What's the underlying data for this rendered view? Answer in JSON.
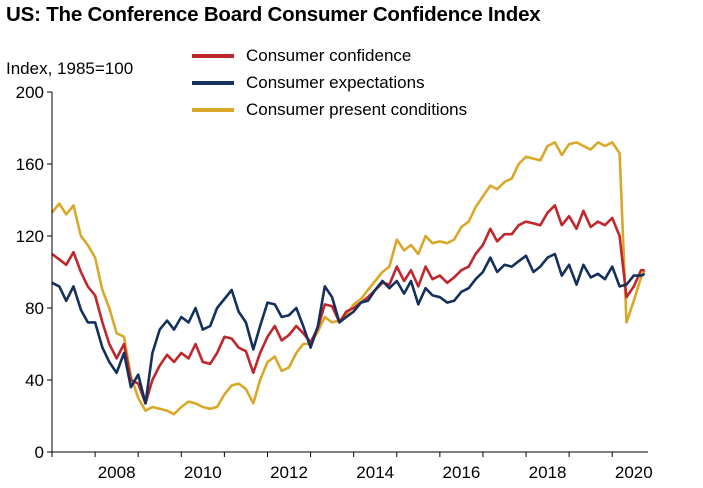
{
  "title": "US: The Conference Board Consumer Confidence Index",
  "colors": {
    "consumer_confidence": "#c0272d",
    "consumer_expectations": "#14305c",
    "consumer_present_conditions": "#d9a829"
  },
  "chart_data": {
    "type": "line",
    "title": "US: The Conference Board Consumer Confidence Index",
    "ylabel": "Index, 1985=100",
    "xlabel": "",
    "ylim": [
      0,
      200
    ],
    "xlim": [
      2007.0,
      2020.83
    ],
    "y_ticks": [
      0,
      40,
      80,
      120,
      160,
      200
    ],
    "x_ticks": [
      "2008",
      "2010",
      "2012",
      "2014",
      "2016",
      "2018",
      "2020"
    ],
    "grid": false,
    "legend_position": "top",
    "series": [
      {
        "name": "Consumer confidence",
        "color": "#c0272d",
        "points": [
          [
            2007.0,
            110
          ],
          [
            2007.17,
            107
          ],
          [
            2007.33,
            104
          ],
          [
            2007.5,
            111
          ],
          [
            2007.67,
            100
          ],
          [
            2007.83,
            92
          ],
          [
            2008.0,
            87
          ],
          [
            2008.17,
            72
          ],
          [
            2008.33,
            60
          ],
          [
            2008.5,
            52
          ],
          [
            2008.67,
            60
          ],
          [
            2008.83,
            40
          ],
          [
            2009.0,
            38
          ],
          [
            2009.17,
            27
          ],
          [
            2009.33,
            40
          ],
          [
            2009.5,
            48
          ],
          [
            2009.67,
            54
          ],
          [
            2009.83,
            50
          ],
          [
            2010.0,
            55
          ],
          [
            2010.17,
            52
          ],
          [
            2010.33,
            60
          ],
          [
            2010.5,
            50
          ],
          [
            2010.67,
            49
          ],
          [
            2010.83,
            55
          ],
          [
            2011.0,
            64
          ],
          [
            2011.17,
            63
          ],
          [
            2011.33,
            58
          ],
          [
            2011.5,
            56
          ],
          [
            2011.67,
            44
          ],
          [
            2011.83,
            55
          ],
          [
            2012.0,
            64
          ],
          [
            2012.17,
            70
          ],
          [
            2012.33,
            62
          ],
          [
            2012.5,
            65
          ],
          [
            2012.67,
            70
          ],
          [
            2012.83,
            66
          ],
          [
            2013.0,
            61
          ],
          [
            2013.17,
            69
          ],
          [
            2013.33,
            82
          ],
          [
            2013.5,
            81
          ],
          [
            2013.67,
            72
          ],
          [
            2013.83,
            78
          ],
          [
            2014.0,
            80
          ],
          [
            2014.17,
            83
          ],
          [
            2014.33,
            86
          ],
          [
            2014.5,
            90
          ],
          [
            2014.67,
            94
          ],
          [
            2014.83,
            93
          ],
          [
            2015.0,
            103
          ],
          [
            2015.17,
            95
          ],
          [
            2015.33,
            101
          ],
          [
            2015.5,
            92
          ],
          [
            2015.67,
            103
          ],
          [
            2015.83,
            96
          ],
          [
            2016.0,
            98
          ],
          [
            2016.17,
            94
          ],
          [
            2016.33,
            97
          ],
          [
            2016.5,
            101
          ],
          [
            2016.67,
            103
          ],
          [
            2016.83,
            110
          ],
          [
            2017.0,
            115
          ],
          [
            2017.17,
            124
          ],
          [
            2017.33,
            117
          ],
          [
            2017.5,
            121
          ],
          [
            2017.67,
            121
          ],
          [
            2017.83,
            126
          ],
          [
            2018.0,
            128
          ],
          [
            2018.17,
            127
          ],
          [
            2018.33,
            126
          ],
          [
            2018.5,
            133
          ],
          [
            2018.67,
            137
          ],
          [
            2018.83,
            126
          ],
          [
            2019.0,
            131
          ],
          [
            2019.17,
            124
          ],
          [
            2019.33,
            134
          ],
          [
            2019.5,
            125
          ],
          [
            2019.67,
            128
          ],
          [
            2019.83,
            126
          ],
          [
            2020.0,
            130
          ],
          [
            2020.17,
            120
          ],
          [
            2020.33,
            86
          ],
          [
            2020.5,
            92
          ],
          [
            2020.67,
            101
          ],
          [
            2020.75,
            101
          ]
        ]
      },
      {
        "name": "Consumer expectations",
        "color": "#14305c",
        "points": [
          [
            2007.0,
            94
          ],
          [
            2007.17,
            92
          ],
          [
            2007.33,
            84
          ],
          [
            2007.5,
            92
          ],
          [
            2007.67,
            79
          ],
          [
            2007.83,
            72
          ],
          [
            2008.0,
            72
          ],
          [
            2008.17,
            58
          ],
          [
            2008.33,
            50
          ],
          [
            2008.5,
            44
          ],
          [
            2008.67,
            55
          ],
          [
            2008.83,
            36
          ],
          [
            2009.0,
            43
          ],
          [
            2009.17,
            27
          ],
          [
            2009.33,
            55
          ],
          [
            2009.5,
            68
          ],
          [
            2009.67,
            73
          ],
          [
            2009.83,
            68
          ],
          [
            2010.0,
            75
          ],
          [
            2010.17,
            72
          ],
          [
            2010.33,
            80
          ],
          [
            2010.5,
            68
          ],
          [
            2010.67,
            70
          ],
          [
            2010.83,
            80
          ],
          [
            2011.0,
            85
          ],
          [
            2011.17,
            90
          ],
          [
            2011.33,
            78
          ],
          [
            2011.5,
            72
          ],
          [
            2011.67,
            57
          ],
          [
            2011.83,
            70
          ],
          [
            2012.0,
            83
          ],
          [
            2012.17,
            82
          ],
          [
            2012.33,
            75
          ],
          [
            2012.5,
            76
          ],
          [
            2012.67,
            80
          ],
          [
            2012.83,
            70
          ],
          [
            2013.0,
            58
          ],
          [
            2013.17,
            70
          ],
          [
            2013.33,
            92
          ],
          [
            2013.5,
            86
          ],
          [
            2013.67,
            72
          ],
          [
            2013.83,
            75
          ],
          [
            2014.0,
            78
          ],
          [
            2014.17,
            83
          ],
          [
            2014.33,
            84
          ],
          [
            2014.5,
            90
          ],
          [
            2014.67,
            95
          ],
          [
            2014.83,
            91
          ],
          [
            2015.0,
            95
          ],
          [
            2015.17,
            88
          ],
          [
            2015.33,
            95
          ],
          [
            2015.5,
            82
          ],
          [
            2015.67,
            91
          ],
          [
            2015.83,
            87
          ],
          [
            2016.0,
            86
          ],
          [
            2016.17,
            83
          ],
          [
            2016.33,
            84
          ],
          [
            2016.5,
            89
          ],
          [
            2016.67,
            91
          ],
          [
            2016.83,
            96
          ],
          [
            2017.0,
            100
          ],
          [
            2017.17,
            108
          ],
          [
            2017.33,
            100
          ],
          [
            2017.5,
            104
          ],
          [
            2017.67,
            103
          ],
          [
            2017.83,
            106
          ],
          [
            2018.0,
            109
          ],
          [
            2018.17,
            100
          ],
          [
            2018.33,
            103
          ],
          [
            2018.5,
            108
          ],
          [
            2018.67,
            110
          ],
          [
            2018.83,
            98
          ],
          [
            2019.0,
            104
          ],
          [
            2019.17,
            93
          ],
          [
            2019.33,
            104
          ],
          [
            2019.5,
            97
          ],
          [
            2019.67,
            99
          ],
          [
            2019.83,
            96
          ],
          [
            2020.0,
            103
          ],
          [
            2020.17,
            92
          ],
          [
            2020.33,
            93
          ],
          [
            2020.5,
            98
          ],
          [
            2020.67,
            98
          ],
          [
            2020.75,
            99
          ]
        ]
      },
      {
        "name": "Consumer present conditions",
        "color": "#d9a829",
        "points": [
          [
            2007.0,
            133
          ],
          [
            2007.17,
            138
          ],
          [
            2007.33,
            132
          ],
          [
            2007.5,
            137
          ],
          [
            2007.67,
            120
          ],
          [
            2007.83,
            115
          ],
          [
            2008.0,
            108
          ],
          [
            2008.17,
            90
          ],
          [
            2008.33,
            80
          ],
          [
            2008.5,
            66
          ],
          [
            2008.67,
            64
          ],
          [
            2008.83,
            42
          ],
          [
            2009.0,
            30
          ],
          [
            2009.17,
            23
          ],
          [
            2009.33,
            25
          ],
          [
            2009.5,
            24
          ],
          [
            2009.67,
            23
          ],
          [
            2009.83,
            21
          ],
          [
            2010.0,
            25
          ],
          [
            2010.17,
            28
          ],
          [
            2010.33,
            27
          ],
          [
            2010.5,
            25
          ],
          [
            2010.67,
            24
          ],
          [
            2010.83,
            25
          ],
          [
            2011.0,
            32
          ],
          [
            2011.17,
            37
          ],
          [
            2011.33,
            38
          ],
          [
            2011.5,
            35
          ],
          [
            2011.67,
            27
          ],
          [
            2011.83,
            40
          ],
          [
            2012.0,
            50
          ],
          [
            2012.17,
            53
          ],
          [
            2012.33,
            45
          ],
          [
            2012.5,
            47
          ],
          [
            2012.67,
            55
          ],
          [
            2012.83,
            60
          ],
          [
            2013.0,
            60
          ],
          [
            2013.17,
            67
          ],
          [
            2013.33,
            75
          ],
          [
            2013.5,
            72
          ],
          [
            2013.67,
            73
          ],
          [
            2013.83,
            76
          ],
          [
            2014.0,
            82
          ],
          [
            2014.17,
            85
          ],
          [
            2014.33,
            90
          ],
          [
            2014.5,
            95
          ],
          [
            2014.67,
            100
          ],
          [
            2014.83,
            103
          ],
          [
            2015.0,
            118
          ],
          [
            2015.17,
            112
          ],
          [
            2015.33,
            115
          ],
          [
            2015.5,
            110
          ],
          [
            2015.67,
            120
          ],
          [
            2015.83,
            116
          ],
          [
            2016.0,
            117
          ],
          [
            2016.17,
            116
          ],
          [
            2016.33,
            118
          ],
          [
            2016.5,
            125
          ],
          [
            2016.67,
            128
          ],
          [
            2016.83,
            136
          ],
          [
            2017.0,
            142
          ],
          [
            2017.17,
            148
          ],
          [
            2017.33,
            146
          ],
          [
            2017.5,
            150
          ],
          [
            2017.67,
            152
          ],
          [
            2017.83,
            160
          ],
          [
            2018.0,
            164
          ],
          [
            2018.17,
            163
          ],
          [
            2018.33,
            162
          ],
          [
            2018.5,
            170
          ],
          [
            2018.67,
            172
          ],
          [
            2018.83,
            165
          ],
          [
            2019.0,
            171
          ],
          [
            2019.17,
            172
          ],
          [
            2019.33,
            170
          ],
          [
            2019.5,
            168
          ],
          [
            2019.67,
            172
          ],
          [
            2019.83,
            170
          ],
          [
            2020.0,
            172
          ],
          [
            2020.17,
            166
          ],
          [
            2020.33,
            72
          ],
          [
            2020.5,
            84
          ],
          [
            2020.67,
            97
          ],
          [
            2020.75,
            101
          ]
        ]
      }
    ]
  }
}
